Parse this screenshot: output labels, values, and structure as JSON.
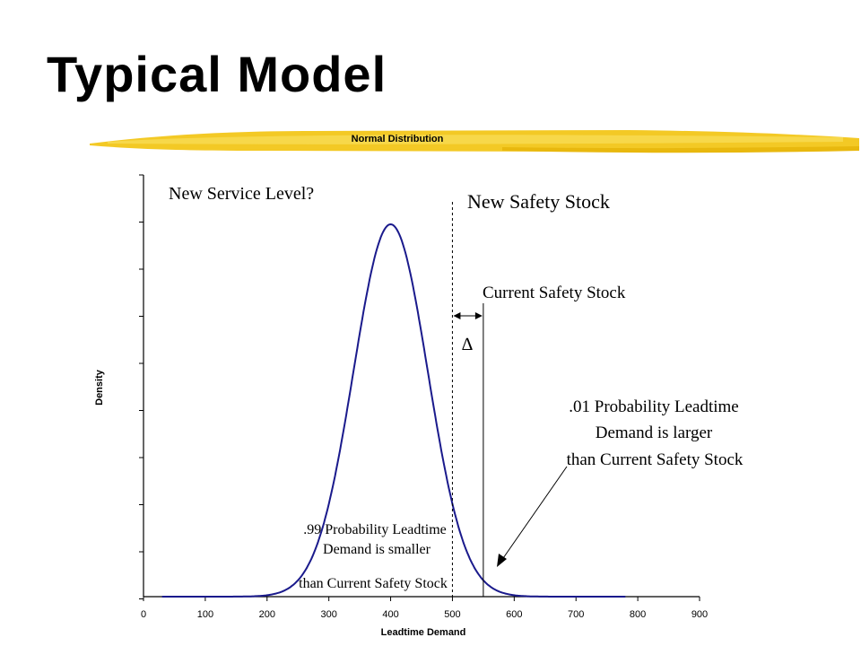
{
  "slide": {
    "title": "Typical Model"
  },
  "chart_data": {
    "type": "line",
    "title": "Normal Distribution",
    "xlabel": "Leadtime Demand",
    "ylabel": "Density",
    "xlim": [
      0,
      900
    ],
    "x_ticks": [
      0,
      100,
      200,
      300,
      400,
      500,
      600,
      700,
      800,
      900
    ],
    "series": [
      {
        "mean": 400,
        "sd": 60,
        "x_range": [
          30,
          780
        ]
      }
    ],
    "lines": {
      "current_safety_stock_x": 550,
      "new_safety_stock_x": 500
    },
    "annotations": {
      "new_service_level": "New Service Level?",
      "new_safety_stock": "New Safety Stock",
      "current_safety_stock": "Current Safety Stock",
      "delta": "∆",
      "right_tail": [
        ".01 Probability Leadtime",
        "Demand is larger",
        "than Current Safety Stock"
      ],
      "left_area": [
        ".99 Probability Leadtime",
        "Demand is smaller",
        "than Current Safety Stock"
      ]
    },
    "colors": {
      "curve": "#1a1a8c",
      "banner": "#f2c619"
    }
  }
}
